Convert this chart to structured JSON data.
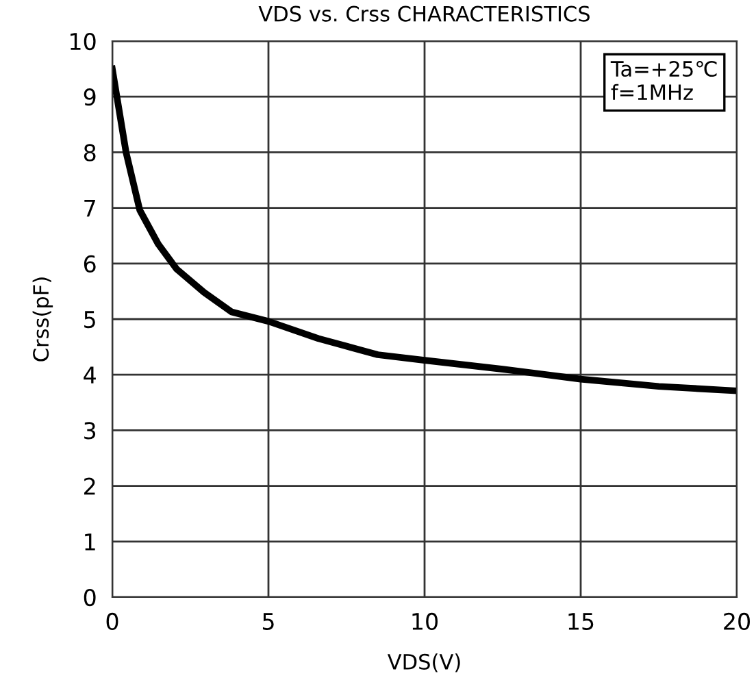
{
  "chart_data": {
    "type": "line",
    "title": "VDS vs. Crss CHARACTERISTICS",
    "xlabel": "VDS(V)",
    "ylabel": "Crss(pF)",
    "annotations": [
      "Ta=+25℃\nf=1MHz"
    ],
    "x": [
      0,
      0.44,
      0.88,
      1.47,
      2.06,
      2.94,
      3.82,
      5,
      6.6,
      8.5,
      10,
      12.5,
      15,
      17.5,
      20
    ],
    "series": [
      {
        "color": "#000000",
        "values": [
          9.5,
          8.0,
          6.96,
          6.35,
          5.9,
          5.48,
          5.13,
          4.96,
          4.65,
          4.36,
          4.26,
          4.1,
          3.92,
          3.79,
          3.71
        ]
      }
    ],
    "xlim": [
      0,
      20
    ],
    "xticks": [
      0,
      5,
      10,
      15,
      20
    ],
    "ylim": [
      0,
      10
    ],
    "yticks": [
      0,
      1,
      2,
      3,
      4,
      5,
      6,
      7,
      8,
      9,
      10
    ],
    "grid": true,
    "legend": false,
    "marker": "none",
    "line_style": "solid"
  }
}
